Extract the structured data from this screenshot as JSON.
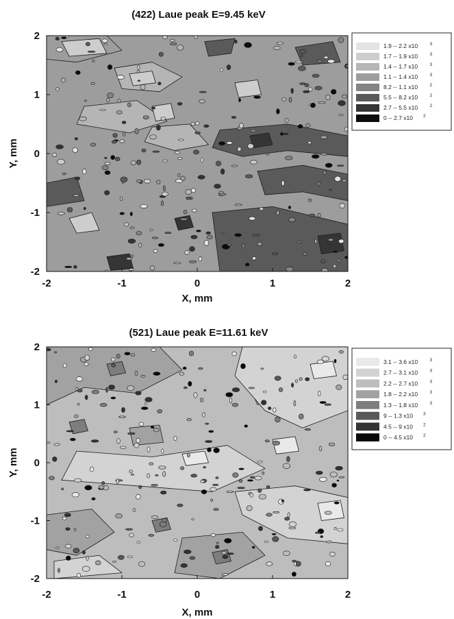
{
  "chart_data": [
    {
      "type": "heatmap",
      "title": "(422) Laue peak E=9.45 keV",
      "xlabel": "X, mm",
      "ylabel": "Y, mm",
      "xlim": [
        -2,
        2
      ],
      "ylim": [
        -2,
        2
      ],
      "x_ticks": [
        "-2",
        "-1",
        "0",
        "1",
        "2"
      ],
      "y_ticks": [
        "-2",
        "-1",
        "0",
        "1",
        "2"
      ],
      "legend_position": "top-right",
      "grid": false,
      "levels": [
        {
          "range": "1.9 -- 2.2 x10",
          "exp": "3",
          "color": "#e3e3e3"
        },
        {
          "range": "1.7 -- 1.9 x10",
          "exp": "3",
          "color": "#cdcdcd"
        },
        {
          "range": "1.4 -- 1.7 x10",
          "exp": "3",
          "color": "#b5b5b5"
        },
        {
          "range": "1.1 -- 1.4 x10",
          "exp": "3",
          "color": "#9d9d9d"
        },
        {
          "range": "8.2 -- 1.1 x10",
          "exp": "2",
          "color": "#848484"
        },
        {
          "range": "5.5 -- 8.2 x10",
          "exp": "2",
          "color": "#5a5a5a"
        },
        {
          "range": "2.7 -- 5.5 x10",
          "exp": "2",
          "color": "#353535"
        },
        {
          "range": "0 -- 2.7 x10",
          "exp": "2",
          "color": "#0c0c0c"
        }
      ],
      "regions": [
        {
          "level": 3,
          "points": [
            [
              -2,
              2
            ],
            [
              -1.2,
              2
            ],
            [
              -1.0,
              1.75
            ],
            [
              -1.6,
              1.55
            ],
            [
              -2,
              1.6
            ]
          ]
        },
        {
          "level": 2,
          "points": [
            [
              -1.1,
              1.45
            ],
            [
              -0.6,
              1.55
            ],
            [
              -0.2,
              1.3
            ],
            [
              -0.5,
              1.05
            ],
            [
              -1.0,
              1.1
            ]
          ]
        },
        {
          "level": 2,
          "points": [
            [
              -1.5,
              0.8
            ],
            [
              -0.8,
              0.9
            ],
            [
              -0.4,
              0.55
            ],
            [
              -0.9,
              0.35
            ],
            [
              -1.6,
              0.5
            ]
          ]
        },
        {
          "level": 2,
          "points": [
            [
              -0.6,
              0.45
            ],
            [
              -0.1,
              0.5
            ],
            [
              0.15,
              0.15
            ],
            [
              -0.3,
              0.05
            ],
            [
              -0.7,
              0.2
            ]
          ]
        },
        {
          "level": 1,
          "points": [
            [
              -1.8,
              1.9
            ],
            [
              -1.3,
              1.95
            ],
            [
              -1.2,
              1.7
            ],
            [
              -1.7,
              1.65
            ]
          ]
        },
        {
          "level": 1,
          "points": [
            [
              -0.9,
              1.35
            ],
            [
              -0.6,
              1.4
            ],
            [
              -0.55,
              1.2
            ],
            [
              -0.85,
              1.15
            ]
          ]
        },
        {
          "level": 1,
          "points": [
            [
              -0.6,
              0.8
            ],
            [
              -0.35,
              0.85
            ],
            [
              -0.3,
              0.6
            ],
            [
              -0.55,
              0.55
            ]
          ]
        },
        {
          "level": 1,
          "points": [
            [
              0.5,
              1.2
            ],
            [
              0.8,
              1.25
            ],
            [
              0.85,
              1.0
            ],
            [
              0.55,
              0.95
            ]
          ]
        },
        {
          "level": 1,
          "points": [
            [
              -1.7,
              -1.1
            ],
            [
              -1.4,
              -1.0
            ],
            [
              -1.3,
              -1.3
            ],
            [
              -1.6,
              -1.35
            ]
          ]
        },
        {
          "level": 5,
          "points": [
            [
              0.3,
              0.4
            ],
            [
              1.2,
              0.5
            ],
            [
              2.0,
              0.3
            ],
            [
              2.0,
              -0.05
            ],
            [
              1.2,
              0.05
            ],
            [
              0.6,
              -0.05
            ],
            [
              0.2,
              0.1
            ]
          ]
        },
        {
          "level": 5,
          "points": [
            [
              0.8,
              -0.3
            ],
            [
              1.4,
              -0.2
            ],
            [
              2.0,
              -0.35
            ],
            [
              2.0,
              -0.8
            ],
            [
              1.4,
              -0.65
            ],
            [
              0.9,
              -0.7
            ]
          ]
        },
        {
          "level": 5,
          "points": [
            [
              0.2,
              -1.0
            ],
            [
              1.0,
              -0.9
            ],
            [
              2.0,
              -1.2
            ],
            [
              2.0,
              -2.0
            ],
            [
              0.3,
              -2.0
            ],
            [
              0.25,
              -1.5
            ]
          ]
        },
        {
          "level": 5,
          "points": [
            [
              -2,
              -0.5
            ],
            [
              -1.6,
              -0.4
            ],
            [
              -1.5,
              -0.8
            ],
            [
              -2,
              -0.9
            ]
          ]
        },
        {
          "level": 5,
          "points": [
            [
              1.3,
              1.8
            ],
            [
              1.8,
              1.9
            ],
            [
              1.9,
              1.55
            ],
            [
              1.4,
              1.5
            ]
          ]
        },
        {
          "level": 5,
          "points": [
            [
              0.1,
              1.9
            ],
            [
              0.5,
              1.95
            ],
            [
              0.45,
              1.7
            ],
            [
              0.15,
              1.65
            ]
          ]
        },
        {
          "level": 6,
          "points": [
            [
              1.6,
              -1.4
            ],
            [
              1.9,
              -1.35
            ],
            [
              1.95,
              -1.65
            ],
            [
              1.65,
              -1.7
            ]
          ]
        },
        {
          "level": 6,
          "points": [
            [
              0.7,
              0.3
            ],
            [
              0.95,
              0.35
            ],
            [
              1.0,
              0.15
            ],
            [
              0.75,
              0.1
            ]
          ]
        },
        {
          "level": 6,
          "points": [
            [
              -1.2,
              -1.75
            ],
            [
              -0.9,
              -1.7
            ],
            [
              -0.85,
              -1.95
            ],
            [
              -1.15,
              -1.98
            ]
          ]
        },
        {
          "level": 6,
          "points": [
            [
              -0.3,
              -1.1
            ],
            [
              -0.1,
              -1.05
            ],
            [
              -0.05,
              -1.25
            ],
            [
              -0.25,
              -1.3
            ]
          ]
        }
      ]
    },
    {
      "type": "heatmap",
      "title": "(521) Laue peak E=11.61 keV",
      "xlabel": "X, mm",
      "ylabel": "Y, mm",
      "xlim": [
        -2,
        2
      ],
      "ylim": [
        -2,
        2
      ],
      "x_ticks": [
        "-2",
        "-1",
        "0",
        "1",
        "2"
      ],
      "y_ticks": [
        "-2",
        "-1",
        "0",
        "1",
        "2"
      ],
      "legend_position": "top-right",
      "grid": false,
      "levels": [
        {
          "range": "3.1 -- 3.6 x10",
          "exp": "3",
          "color": "#e9e9e9"
        },
        {
          "range": "2.7 -- 3.1 x10",
          "exp": "3",
          "color": "#d3d3d3"
        },
        {
          "range": "2.2 -- 2.7 x10",
          "exp": "3",
          "color": "#bdbdbd"
        },
        {
          "range": "1.8 -- 2.2 x10",
          "exp": "3",
          "color": "#a2a2a2"
        },
        {
          "range": "1.3 -- 1.8 x10",
          "exp": "3",
          "color": "#7d7d7d"
        },
        {
          "range": "9 -- 1.3 x10",
          "exp": "3",
          "color": "#585858"
        },
        {
          "range": "4.5 -- 9 x10",
          "exp": "2",
          "color": "#333333"
        },
        {
          "range": "0 -- 4.5 x10",
          "exp": "2",
          "color": "#0a0a0a"
        }
      ],
      "regions": [
        {
          "level": 3,
          "points": [
            [
              -2,
              2
            ],
            [
              -0.5,
              2
            ],
            [
              -0.2,
              1.6
            ],
            [
              -0.8,
              1.2
            ],
            [
              -1.5,
              1.3
            ],
            [
              -2,
              1.0
            ]
          ]
        },
        {
          "level": 3,
          "points": [
            [
              -2,
              -0.9
            ],
            [
              -1.4,
              -0.8
            ],
            [
              -1.1,
              -1.2
            ],
            [
              -1.6,
              -1.6
            ],
            [
              -2,
              -1.5
            ]
          ]
        },
        {
          "level": 3,
          "points": [
            [
              -0.2,
              -1.3
            ],
            [
              0.6,
              -1.2
            ],
            [
              0.9,
              -1.6
            ],
            [
              0.3,
              -2.0
            ],
            [
              -0.3,
              -1.9
            ]
          ]
        },
        {
          "level": 3,
          "points": [
            [
              0.7,
              1.3
            ],
            [
              1.1,
              1.4
            ],
            [
              1.2,
              1.1
            ],
            [
              0.8,
              1.0
            ]
          ]
        },
        {
          "level": 3,
          "points": [
            [
              -0.9,
              0.6
            ],
            [
              -0.5,
              0.65
            ],
            [
              -0.45,
              0.35
            ],
            [
              -0.85,
              0.3
            ]
          ]
        },
        {
          "level": 1,
          "points": [
            [
              0.6,
              2
            ],
            [
              2,
              2
            ],
            [
              2,
              0.9
            ],
            [
              1.4,
              0.6
            ],
            [
              0.9,
              0.9
            ],
            [
              0.5,
              1.5
            ]
          ]
        },
        {
          "level": 1,
          "points": [
            [
              -1.6,
              0.2
            ],
            [
              -0.6,
              0.1
            ],
            [
              0.4,
              0.3
            ],
            [
              0.9,
              -0.1
            ],
            [
              0.2,
              -0.5
            ],
            [
              -0.8,
              -0.4
            ],
            [
              -1.8,
              -0.3
            ]
          ]
        },
        {
          "level": 1,
          "points": [
            [
              0.5,
              -0.5
            ],
            [
              1.3,
              -0.4
            ],
            [
              2.0,
              -0.6
            ],
            [
              2.0,
              -1.4
            ],
            [
              1.2,
              -1.3
            ],
            [
              0.6,
              -0.9
            ]
          ]
        },
        {
          "level": 1,
          "points": [
            [
              -1.9,
              -1.7
            ],
            [
              -1.3,
              -1.6
            ],
            [
              -1.0,
              -1.9
            ],
            [
              -1.9,
              -2.0
            ]
          ]
        },
        {
          "level": 0,
          "points": [
            [
              1.5,
              1.7
            ],
            [
              1.8,
              1.75
            ],
            [
              1.85,
              1.5
            ],
            [
              1.55,
              1.45
            ]
          ]
        },
        {
          "level": 0,
          "points": [
            [
              1.6,
              -0.7
            ],
            [
              1.9,
              -0.65
            ],
            [
              1.95,
              -0.95
            ],
            [
              1.65,
              -1.0
            ]
          ]
        },
        {
          "level": 0,
          "points": [
            [
              -0.2,
              0.15
            ],
            [
              0.1,
              0.2
            ],
            [
              0.15,
              0.0
            ],
            [
              -0.15,
              -0.05
            ]
          ]
        },
        {
          "level": 0,
          "points": [
            [
              1.0,
              0.4
            ],
            [
              1.3,
              0.45
            ],
            [
              1.35,
              0.2
            ],
            [
              1.05,
              0.15
            ]
          ]
        },
        {
          "level": 4,
          "points": [
            [
              -1.2,
              1.7
            ],
            [
              -1.0,
              1.75
            ],
            [
              -0.95,
              1.55
            ],
            [
              -1.15,
              1.5
            ]
          ]
        },
        {
          "level": 4,
          "points": [
            [
              -1.7,
              0.7
            ],
            [
              -1.5,
              0.75
            ],
            [
              -1.45,
              0.55
            ],
            [
              -1.65,
              0.5
            ]
          ]
        },
        {
          "level": 4,
          "points": [
            [
              0.2,
              -1.55
            ],
            [
              0.4,
              -1.5
            ],
            [
              0.45,
              -1.7
            ],
            [
              0.25,
              -1.75
            ]
          ]
        },
        {
          "level": 4,
          "points": [
            [
              -0.6,
              -1.0
            ],
            [
              -0.4,
              -0.95
            ],
            [
              -0.35,
              -1.15
            ],
            [
              -0.55,
              -1.2
            ]
          ]
        }
      ]
    }
  ]
}
